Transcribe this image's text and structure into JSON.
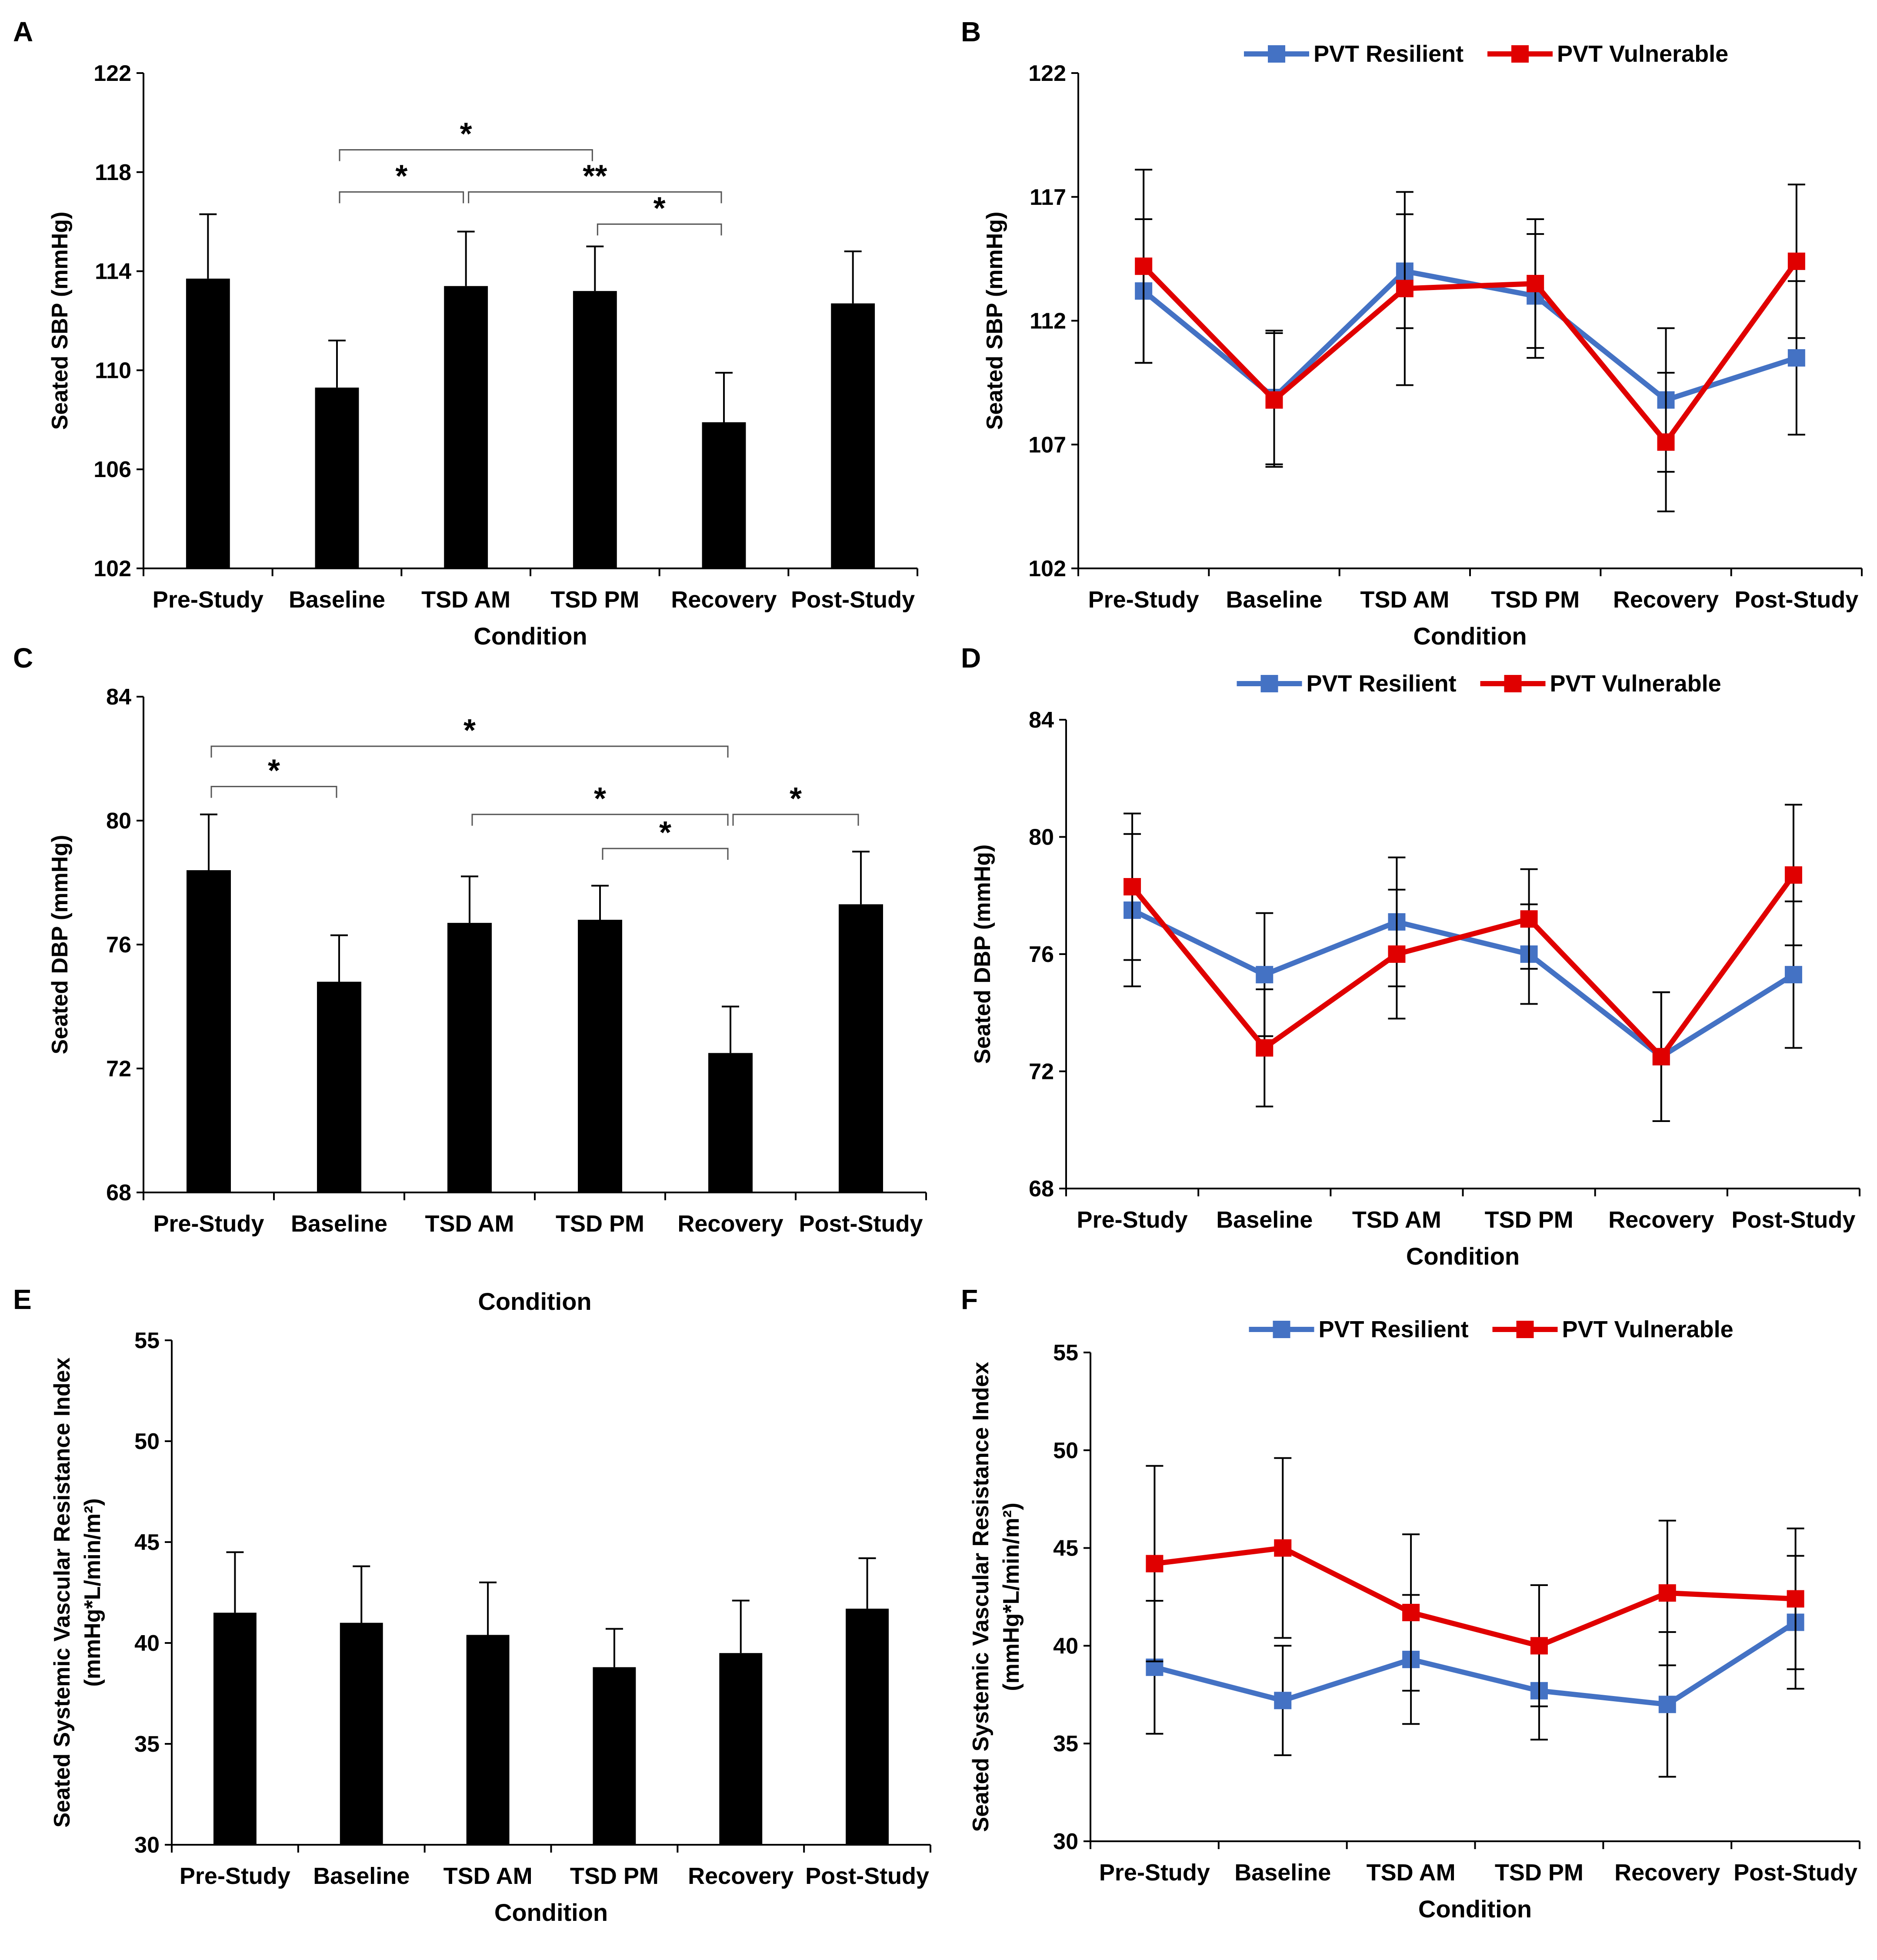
{
  "colors": {
    "bar": "#000000",
    "axis": "#000000",
    "resilient": "#4472C4",
    "vulnerable": "#E00000",
    "background": "#ffffff"
  },
  "chart_data": [
    {
      "id": "A",
      "panel_label": "A",
      "type": "bar",
      "xlabel": "Condition",
      "ylabel": "Seated SBP (mmHg)",
      "ylim": [
        102,
        122
      ],
      "yticks": [
        102,
        106,
        110,
        114,
        118,
        122
      ],
      "categories": [
        "Pre-Study",
        "Baseline",
        "TSD AM",
        "TSD PM",
        "Recovery",
        "Post-Study"
      ],
      "values": [
        113.7,
        109.3,
        113.4,
        113.2,
        107.9,
        112.7
      ],
      "errors": [
        2.6,
        1.9,
        2.2,
        1.8,
        2.0,
        2.1
      ],
      "significance": [
        {
          "from": 1,
          "to": 2,
          "label": "*",
          "y": 117.2
        },
        {
          "from": 2,
          "to": 4,
          "label": "**",
          "y": 117.2
        },
        {
          "from": 3,
          "to": 4,
          "label": "*",
          "y": 115.9
        },
        {
          "from": 1,
          "to": 3,
          "label": "*",
          "y": 118.9
        }
      ]
    },
    {
      "id": "B",
      "panel_label": "B",
      "type": "line",
      "xlabel": "Condition",
      "ylabel": "Seated SBP (mmHg)",
      "ylim": [
        102,
        122
      ],
      "yticks": [
        102,
        107,
        112,
        117,
        122
      ],
      "categories": [
        "Pre-Study",
        "Baseline",
        "TSD AM",
        "TSD PM",
        "Recovery",
        "Post-Study"
      ],
      "legend": [
        "PVT Resilient",
        "PVT Vulnerable"
      ],
      "series": [
        {
          "name": "PVT Resilient",
          "color_key": "resilient",
          "values": [
            113.2,
            108.9,
            114.0,
            113.0,
            108.8,
            110.5
          ],
          "errors": [
            2.9,
            2.7,
            2.3,
            2.5,
            2.9,
            3.1
          ]
        },
        {
          "name": "PVT Vulnerable",
          "color_key": "vulnerable",
          "values": [
            114.2,
            108.8,
            113.3,
            113.5,
            107.1,
            114.4
          ],
          "errors": [
            3.9,
            2.7,
            3.9,
            2.6,
            2.8,
            3.1
          ]
        }
      ]
    },
    {
      "id": "C",
      "panel_label": "C",
      "type": "bar",
      "xlabel": "Condition",
      "ylabel": "Seated DBP (mmHg)",
      "ylim": [
        68,
        84
      ],
      "yticks": [
        68,
        72,
        76,
        80,
        84
      ],
      "categories": [
        "Pre-Study",
        "Baseline",
        "TSD AM",
        "TSD PM",
        "Recovery",
        "Post-Study"
      ],
      "values": [
        78.4,
        74.8,
        76.7,
        76.8,
        72.5,
        77.3
      ],
      "errors": [
        1.8,
        1.5,
        1.5,
        1.1,
        1.5,
        1.7
      ],
      "significance": [
        {
          "from": 0,
          "to": 4,
          "label": "*",
          "y": 82.4
        },
        {
          "from": 0,
          "to": 1,
          "label": "*",
          "y": 81.1
        },
        {
          "from": 2,
          "to": 4,
          "label": "*",
          "y": 80.2
        },
        {
          "from": 4,
          "to": 5,
          "label": "*",
          "y": 80.2
        },
        {
          "from": 3,
          "to": 4,
          "label": "*",
          "y": 79.1
        }
      ]
    },
    {
      "id": "D",
      "panel_label": "D",
      "type": "line",
      "xlabel": "Condition",
      "ylabel": "Seated DBP (mmHg)",
      "ylim": [
        68,
        84
      ],
      "yticks": [
        68,
        72,
        76,
        80,
        84
      ],
      "categories": [
        "Pre-Study",
        "Baseline",
        "TSD AM",
        "TSD PM",
        "Recovery",
        "Post-Study"
      ],
      "legend": [
        "PVT Resilient",
        "PVT Vulnerable"
      ],
      "series": [
        {
          "name": "PVT Resilient",
          "color_key": "resilient",
          "values": [
            77.5,
            75.3,
            77.1,
            76.0,
            72.5,
            75.3
          ],
          "errors": [
            2.6,
            2.1,
            2.2,
            1.7,
            2.2,
            2.5
          ]
        },
        {
          "name": "PVT Vulnerable",
          "color_key": "vulnerable",
          "values": [
            78.3,
            72.8,
            76.0,
            77.2,
            72.5,
            78.7
          ],
          "errors": [
            2.5,
            2.0,
            2.2,
            1.7,
            2.2,
            2.4
          ]
        }
      ]
    },
    {
      "id": "E",
      "panel_label": "E",
      "type": "bar",
      "xlabel": "Condition",
      "ylabel": "Seated Systemic Vascular Resistance Index",
      "ylabel2": "(mmHg*L/min/m²)",
      "ylim": [
        30,
        55
      ],
      "yticks": [
        30,
        35,
        40,
        45,
        50,
        55
      ],
      "categories": [
        "Pre-Study",
        "Baseline",
        "TSD AM",
        "TSD PM",
        "Recovery",
        "Post-Study"
      ],
      "values": [
        41.5,
        41.0,
        40.4,
        38.8,
        39.5,
        41.7
      ],
      "errors": [
        3.0,
        2.8,
        2.6,
        1.9,
        2.6,
        2.5
      ],
      "significance": []
    },
    {
      "id": "F",
      "panel_label": "F",
      "type": "line",
      "xlabel": "Condition",
      "ylabel": "Seated Systemic Vascular Resistance Index",
      "ylabel2": "(mmHg*L/min/m²)",
      "ylim": [
        30,
        55
      ],
      "yticks": [
        30,
        35,
        40,
        45,
        50,
        55
      ],
      "categories": [
        "Pre-Study",
        "Baseline",
        "TSD AM",
        "TSD PM",
        "Recovery",
        "Post-Study"
      ],
      "legend": [
        "PVT Resilient",
        "PVT Vulnerable"
      ],
      "series": [
        {
          "name": "PVT Resilient",
          "color_key": "resilient",
          "values": [
            38.9,
            37.2,
            39.3,
            37.7,
            37.0,
            41.2
          ],
          "errors": [
            3.4,
            2.8,
            3.3,
            2.5,
            3.7,
            3.4
          ]
        },
        {
          "name": "PVT Vulnerable",
          "color_key": "vulnerable",
          "values": [
            44.2,
            45.0,
            41.7,
            40.0,
            42.7,
            42.4
          ],
          "errors": [
            5.0,
            4.6,
            4.0,
            3.1,
            3.7,
            3.6
          ]
        }
      ]
    }
  ]
}
